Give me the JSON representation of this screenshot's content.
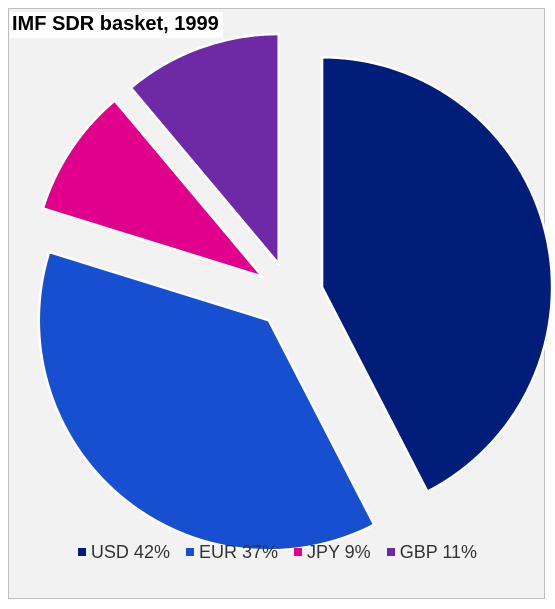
{
  "chart_data": {
    "type": "pie",
    "title": "IMF SDR basket, 1999",
    "exploded": true,
    "legend_placement": "bottom",
    "slices": [
      {
        "label": "USD",
        "value": 42,
        "legend_text": "USD 42%",
        "color": "#001d7a"
      },
      {
        "label": "EUR",
        "value": 37,
        "legend_text": "EUR 37%",
        "color": "#1650d1"
      },
      {
        "label": "JPY",
        "value": 9,
        "legend_text": "JPY 9%",
        "color": "#e0008c"
      },
      {
        "label": "GBP",
        "value": 11,
        "legend_text": "GBP 11%",
        "color": "#6e29a6"
      }
    ]
  }
}
